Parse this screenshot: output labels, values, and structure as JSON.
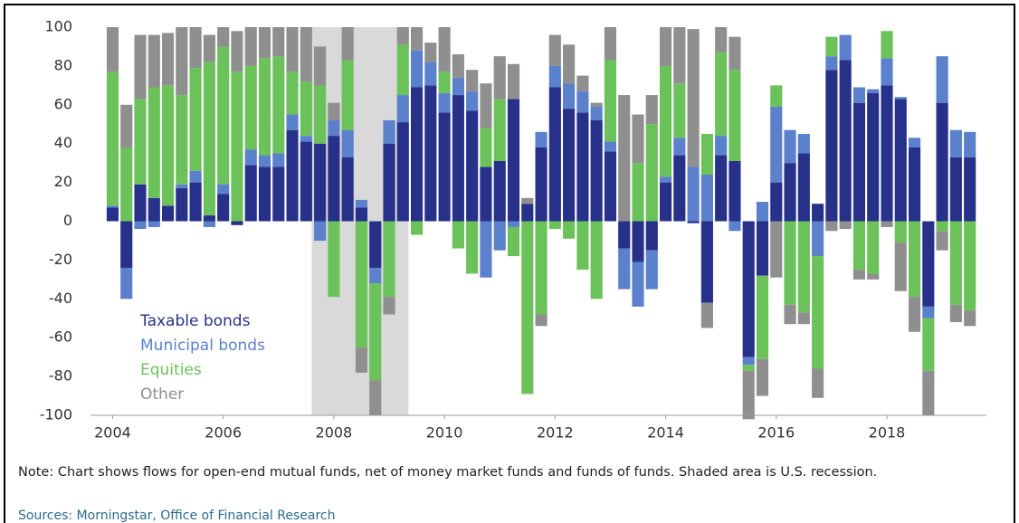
{
  "chart_data": {
    "type": "bar",
    "stacked": true,
    "x": [
      2004,
      2004.25,
      2004.5,
      2004.75,
      2005,
      2005.25,
      2005.5,
      2005.75,
      2006,
      2006.25,
      2006.5,
      2006.75,
      2007,
      2007.25,
      2007.5,
      2007.75,
      2008,
      2008.25,
      2008.5,
      2008.75,
      2009,
      2009.25,
      2009.5,
      2009.75,
      2010,
      2010.25,
      2010.5,
      2010.75,
      2011,
      2011.25,
      2011.5,
      2011.75,
      2012,
      2012.25,
      2012.5,
      2012.75,
      2013,
      2013.25,
      2013.5,
      2013.75,
      2014,
      2014.25,
      2014.5,
      2014.75,
      2015,
      2015.25,
      2015.5,
      2015.75,
      2016,
      2016.25,
      2016.5,
      2016.75,
      2017,
      2017.25,
      2017.5,
      2017.75,
      2018,
      2018.25,
      2018.5,
      2018.75,
      2019,
      2019.25,
      2019.5
    ],
    "series": [
      {
        "name": "Taxable bonds",
        "color": "#28318a",
        "values": [
          7,
          -24,
          19,
          12,
          8,
          17,
          20,
          3,
          14,
          -2,
          29,
          28,
          28,
          47,
          41,
          40,
          44,
          33,
          7,
          -24,
          40,
          51,
          69,
          70,
          56,
          65,
          57,
          28,
          31,
          63,
          9,
          38,
          69,
          58,
          56,
          52,
          36,
          -14,
          -21,
          -15,
          20,
          34,
          -1,
          -42,
          34,
          31,
          -70,
          -28,
          20,
          30,
          35,
          9,
          78,
          83,
          61,
          66,
          70,
          63,
          38,
          -44,
          61,
          33,
          33
        ]
      },
      {
        "name": "Municipal bonds",
        "color": "#5b80cc",
        "values": [
          1,
          -16,
          -4,
          -3,
          0,
          2,
          6,
          -3,
          5,
          0,
          8,
          6,
          7,
          8,
          3,
          -10,
          8,
          14,
          4,
          -8,
          12,
          14,
          19,
          12,
          10,
          9,
          10,
          -29,
          -15,
          -3,
          0,
          8,
          11,
          13,
          11,
          7,
          5,
          -21,
          -23,
          -20,
          3,
          9,
          28,
          24,
          10,
          -5,
          -4,
          10,
          39,
          17,
          10,
          -18,
          7,
          13,
          8,
          2,
          14,
          1,
          5,
          -6,
          24,
          14,
          13
        ]
      },
      {
        "name": "Equities",
        "color": "#6cc25a",
        "values": [
          69,
          38,
          44,
          57,
          62,
          46,
          53,
          79,
          71,
          77,
          43,
          50,
          50,
          22,
          28,
          30,
          -39,
          36,
          -65,
          -50,
          -39,
          26,
          -7,
          0,
          11,
          -14,
          -27,
          20,
          32,
          -15,
          -89,
          -48,
          -4,
          -9,
          -25,
          -40,
          42,
          0,
          30,
          50,
          57,
          28,
          0,
          21,
          43,
          47,
          -3,
          -43,
          11,
          -43,
          -47,
          -58,
          10,
          0,
          -25,
          -27,
          14,
          -11,
          -39,
          -27,
          -5,
          -43,
          -46
        ]
      },
      {
        "name": "Other",
        "color": "#8f8f8f",
        "values": [
          23,
          22,
          33,
          27,
          27,
          35,
          21,
          14,
          10,
          21,
          20,
          16,
          15,
          23,
          28,
          20,
          9,
          17,
          -13,
          -18,
          -9,
          9,
          12,
          10,
          23,
          12,
          11,
          23,
          22,
          18,
          3,
          -6,
          16,
          20,
          8,
          2,
          17,
          65,
          25,
          15,
          20,
          29,
          71,
          -13,
          13,
          17,
          -25,
          -19,
          -29,
          -10,
          -6,
          -15,
          -5,
          -4,
          -5,
          -3,
          -3,
          -25,
          -18,
          -23,
          -10,
          -9,
          -8
        ]
      }
    ],
    "xlim": [
      2003.6,
      2019.8
    ],
    "xticks": [
      2004,
      2006,
      2008,
      2010,
      2012,
      2014,
      2016,
      2018
    ],
    "ylim": [
      -100,
      100
    ],
    "yticks": [
      -100,
      -80,
      -60,
      -40,
      -20,
      0,
      20,
      40,
      60,
      80,
      100
    ],
    "shaded_xrange": [
      2007.6,
      2009.35
    ],
    "shade_color": "#d9d9d9",
    "legend": "lower left",
    "grid": false,
    "note": "Note: Chart shows flows for open-end mutual funds, net of money market funds and funds of funds. Shaded area is U.S. recession.",
    "sources": "Sources: Morningstar, Office of Financial Research"
  }
}
